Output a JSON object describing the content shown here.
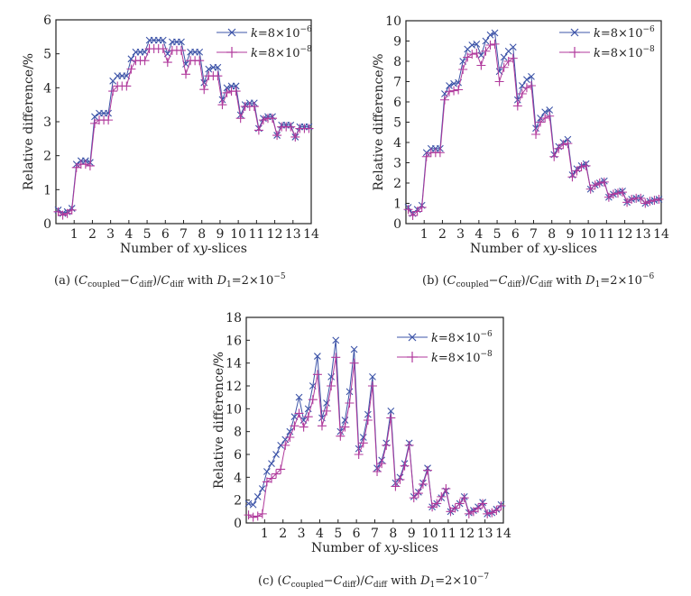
{
  "colors": {
    "series_k6": "#3d54a8",
    "series_k8": "#b03a9c",
    "axis": "#222222"
  },
  "chart_data": [
    {
      "type": "line",
      "panel": "a",
      "xlabel": "Number of xy-slices",
      "xlabel_parts": [
        "Number of ",
        "xy",
        "-slices"
      ],
      "ylabel": "Relative difference/%",
      "xlim": [
        0,
        14
      ],
      "ylim": [
        0,
        6
      ],
      "ystep": 1,
      "xticks": [
        1,
        2,
        3,
        4,
        5,
        6,
        7,
        8,
        9,
        10,
        11,
        12,
        13,
        14
      ],
      "points_per_slice": 4,
      "legend_position": "top-right",
      "caption": {
        "label": "(a) (",
        "c": "C",
        "coupled": "coupled",
        "minus": "−",
        "c2": "C",
        "diff": "diff",
        "slash": ")/",
        "c3": "C",
        "diff2": "diff",
        "with": " with ",
        "d": "D",
        "d_sub": "1",
        "eq": "=2×10",
        "exp": "−5"
      },
      "series": [
        {
          "name": "k=8×10^-6",
          "k": "k",
          "mant": "=8×10",
          "exp": "−6",
          "marker": "x",
          "values": [
            0.4,
            0.3,
            0.35,
            0.45,
            1.75,
            1.85,
            1.85,
            1.8,
            3.15,
            3.25,
            3.25,
            3.25,
            4.2,
            4.35,
            4.35,
            4.35,
            4.85,
            5.05,
            5.05,
            5.05,
            5.4,
            5.4,
            5.4,
            5.4,
            5.0,
            5.35,
            5.35,
            5.35,
            4.7,
            5.05,
            5.05,
            5.05,
            4.15,
            4.55,
            4.6,
            4.6,
            3.65,
            4.0,
            4.05,
            4.05,
            3.2,
            3.5,
            3.55,
            3.55,
            2.8,
            3.1,
            3.15,
            3.15,
            2.6,
            2.9,
            2.9,
            2.9,
            2.55,
            2.85,
            2.85,
            2.85
          ]
        },
        {
          "name": "k=8×10^-8",
          "k": "k",
          "mant": "=8×10",
          "exp": "−8",
          "marker": "+",
          "values": [
            0.35,
            0.25,
            0.3,
            0.4,
            1.65,
            1.75,
            1.75,
            1.7,
            2.95,
            3.05,
            3.05,
            3.05,
            3.9,
            4.05,
            4.05,
            4.05,
            4.55,
            4.8,
            4.8,
            4.8,
            5.15,
            5.15,
            5.15,
            5.15,
            4.75,
            5.1,
            5.1,
            5.1,
            4.4,
            4.8,
            4.8,
            4.8,
            3.95,
            4.35,
            4.35,
            4.35,
            3.5,
            3.85,
            3.9,
            3.9,
            3.1,
            3.45,
            3.45,
            3.45,
            2.75,
            3.05,
            3.1,
            3.1,
            2.6,
            2.85,
            2.85,
            2.85,
            2.55,
            2.8,
            2.8,
            2.8
          ]
        }
      ]
    },
    {
      "type": "line",
      "panel": "b",
      "xlabel": "Number of xy-slices",
      "xlabel_parts": [
        "Number of ",
        "xy",
        "-slices"
      ],
      "ylabel": "Relative difference/%",
      "xlim": [
        0,
        14
      ],
      "ylim": [
        0,
        10
      ],
      "ystep": 1,
      "xticks": [
        1,
        2,
        3,
        4,
        5,
        6,
        7,
        8,
        9,
        10,
        11,
        12,
        13,
        14
      ],
      "points_per_slice": 4,
      "legend_position": "top-right",
      "caption": {
        "label": "(b) (",
        "c": "C",
        "coupled": "coupled",
        "minus": "−",
        "c2": "C",
        "diff": "diff",
        "slash": ")/",
        "c3": "C",
        "diff2": "diff",
        "with": " with ",
        "d": "D",
        "d_sub": "1",
        "eq": "=2×10",
        "exp": "−6"
      },
      "series": [
        {
          "name": "k=8×10^-6",
          "k": "k",
          "mant": "=8×10",
          "exp": "−6",
          "marker": "x",
          "values": [
            0.8,
            0.5,
            0.7,
            0.9,
            3.5,
            3.7,
            3.7,
            3.7,
            6.4,
            6.8,
            6.9,
            6.95,
            8.0,
            8.6,
            8.8,
            8.85,
            8.3,
            9.0,
            9.3,
            9.4,
            7.5,
            8.2,
            8.5,
            8.7,
            6.1,
            6.8,
            7.1,
            7.25,
            4.7,
            5.2,
            5.5,
            5.6,
            3.4,
            3.8,
            4.0,
            4.15,
            2.4,
            2.7,
            2.85,
            2.95,
            1.7,
            1.9,
            2.0,
            2.1,
            1.3,
            1.45,
            1.55,
            1.6,
            1.05,
            1.2,
            1.25,
            1.25,
            1.0,
            1.1,
            1.15,
            1.2
          ]
        },
        {
          "name": "k=8×10^-8",
          "k": "k",
          "mant": "=8×10",
          "exp": "−8",
          "marker": "+",
          "values": [
            0.7,
            0.4,
            0.6,
            0.8,
            3.3,
            3.5,
            3.5,
            3.5,
            6.1,
            6.5,
            6.55,
            6.6,
            7.6,
            8.2,
            8.35,
            8.4,
            7.8,
            8.5,
            8.8,
            8.85,
            7.0,
            7.7,
            8.0,
            8.15,
            5.8,
            6.4,
            6.7,
            6.8,
            4.4,
            5.0,
            5.2,
            5.3,
            3.3,
            3.7,
            3.9,
            3.95,
            2.3,
            2.6,
            2.8,
            2.85,
            1.7,
            1.9,
            2.0,
            2.05,
            1.3,
            1.45,
            1.5,
            1.55,
            1.05,
            1.2,
            1.25,
            1.25,
            1.0,
            1.1,
            1.15,
            1.2
          ]
        }
      ]
    },
    {
      "type": "line",
      "panel": "c",
      "xlabel": "Number of xy-slices",
      "xlabel_parts": [
        "Number of ",
        "xy",
        "-slices"
      ],
      "ylabel": "Relative difference/%",
      "xlim": [
        0,
        14
      ],
      "ylim": [
        0,
        18
      ],
      "ystep": 2,
      "xticks": [
        1,
        2,
        3,
        4,
        5,
        6,
        7,
        8,
        9,
        10,
        11,
        12,
        13,
        14
      ],
      "points_per_slice": 4,
      "legend_position": "top-right",
      "caption": {
        "label": "(c) (",
        "c": "C",
        "coupled": "coupled",
        "minus": "−",
        "c2": "C",
        "diff": "diff",
        "slash": ")/",
        "c3": "C",
        "diff2": "diff",
        "with": " with ",
        "d": "D",
        "d_sub": "1",
        "eq": "=2×10",
        "exp": "−7"
      },
      "series": [
        {
          "name": "k=8×10^-6",
          "k": "k",
          "mant": "=8×10",
          "exp": "−6",
          "marker": "x",
          "values": [
            1.7,
            1.6,
            2.3,
            3.0,
            4.5,
            5.2,
            6.0,
            6.8,
            7.3,
            8.0,
            9.3,
            11.0,
            9.0,
            10.0,
            12.0,
            14.6,
            9.2,
            10.5,
            12.8,
            16.0,
            8.0,
            9.0,
            11.5,
            15.2,
            6.5,
            7.5,
            9.5,
            12.8,
            4.8,
            5.5,
            7.0,
            9.8,
            3.5,
            4.0,
            5.2,
            7.0,
            2.3,
            2.7,
            3.5,
            4.8,
            1.4,
            1.7,
            2.2,
            2.8,
            1.0,
            1.3,
            1.7,
            2.3,
            0.9,
            1.1,
            1.4,
            1.8,
            0.8,
            0.9,
            1.2,
            1.6
          ]
        },
        {
          "name": "k=8×10^-8",
          "k": "k",
          "mant": "=8×10",
          "exp": "−8",
          "marker": "+",
          "values": [
            0.7,
            0.5,
            0.6,
            0.8,
            3.6,
            3.9,
            4.3,
            4.7,
            6.8,
            7.5,
            8.5,
            9.6,
            8.4,
            9.3,
            10.8,
            13.0,
            8.5,
            9.8,
            12.0,
            14.5,
            7.6,
            8.4,
            10.5,
            14.0,
            6.0,
            7.0,
            9.0,
            12.0,
            4.5,
            5.2,
            6.8,
            9.2,
            3.2,
            3.8,
            5.0,
            6.8,
            2.2,
            2.6,
            3.4,
            4.6,
            1.4,
            1.7,
            2.3,
            3.0,
            1.0,
            1.3,
            1.7,
            2.2,
            0.8,
            1.0,
            1.3,
            1.7,
            0.8,
            0.9,
            1.1,
            1.5
          ]
        }
      ]
    }
  ]
}
